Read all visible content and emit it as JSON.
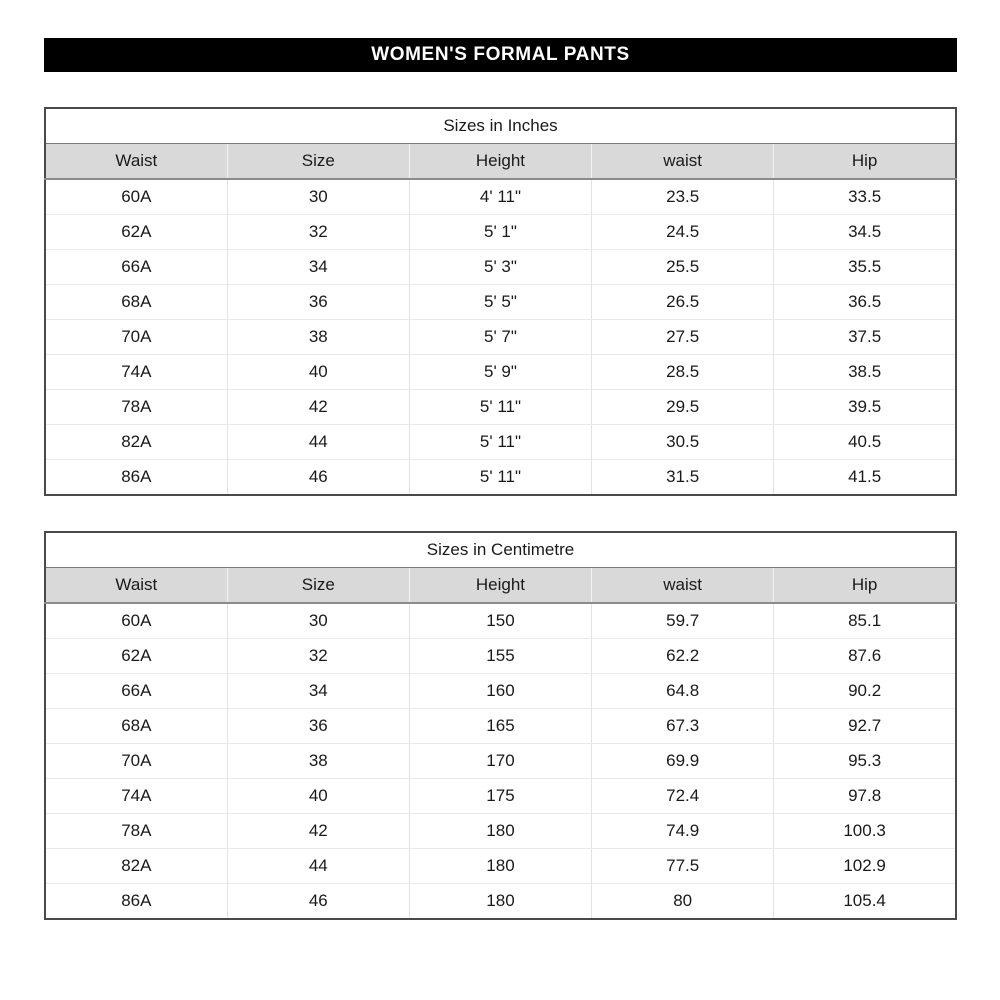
{
  "page": {
    "title": "WOMEN'S FORMAL PANTS"
  },
  "colors": {
    "title_bar_bg": "#000000",
    "title_bar_text": "#ffffff",
    "header_row_bg": "#d9d9d9",
    "outer_border": "#4a4a4a",
    "header_bottom_border": "#8c8c8c",
    "row_divider": "#e9e9e9",
    "column_divider": "#e2e2e2",
    "body_text": "#1a1a1a"
  },
  "tables": [
    {
      "caption": "Sizes in Inches",
      "columns": [
        "Waist",
        "Size",
        "Height",
        "waist",
        "Hip"
      ],
      "rows": [
        [
          "60A",
          "30",
          "4' 11\"",
          "23.5",
          "33.5"
        ],
        [
          "62A",
          "32",
          "5' 1\"",
          "24.5",
          "34.5"
        ],
        [
          "66A",
          "34",
          "5' 3\"",
          "25.5",
          "35.5"
        ],
        [
          "68A",
          "36",
          "5' 5\"",
          "26.5",
          "36.5"
        ],
        [
          "70A",
          "38",
          "5' 7\"",
          "27.5",
          "37.5"
        ],
        [
          "74A",
          "40",
          "5' 9\"",
          "28.5",
          "38.5"
        ],
        [
          "78A",
          "42",
          "5' 11\"",
          "29.5",
          "39.5"
        ],
        [
          "82A",
          "44",
          "5' 11\"",
          "30.5",
          "40.5"
        ],
        [
          "86A",
          "46",
          "5' 11\"",
          "31.5",
          "41.5"
        ]
      ]
    },
    {
      "caption": "Sizes in Centimetre",
      "columns": [
        "Waist",
        "Size",
        "Height",
        "waist",
        "Hip"
      ],
      "rows": [
        [
          "60A",
          "30",
          "150",
          "59.7",
          "85.1"
        ],
        [
          "62A",
          "32",
          "155",
          "62.2",
          "87.6"
        ],
        [
          "66A",
          "34",
          "160",
          "64.8",
          "90.2"
        ],
        [
          "68A",
          "36",
          "165",
          "67.3",
          "92.7"
        ],
        [
          "70A",
          "38",
          "170",
          "69.9",
          "95.3"
        ],
        [
          "74A",
          "40",
          "175",
          "72.4",
          "97.8"
        ],
        [
          "78A",
          "42",
          "180",
          "74.9",
          "100.3"
        ],
        [
          "82A",
          "44",
          "180",
          "77.5",
          "102.9"
        ],
        [
          "86A",
          "46",
          "180",
          "80",
          "105.4"
        ]
      ]
    }
  ]
}
